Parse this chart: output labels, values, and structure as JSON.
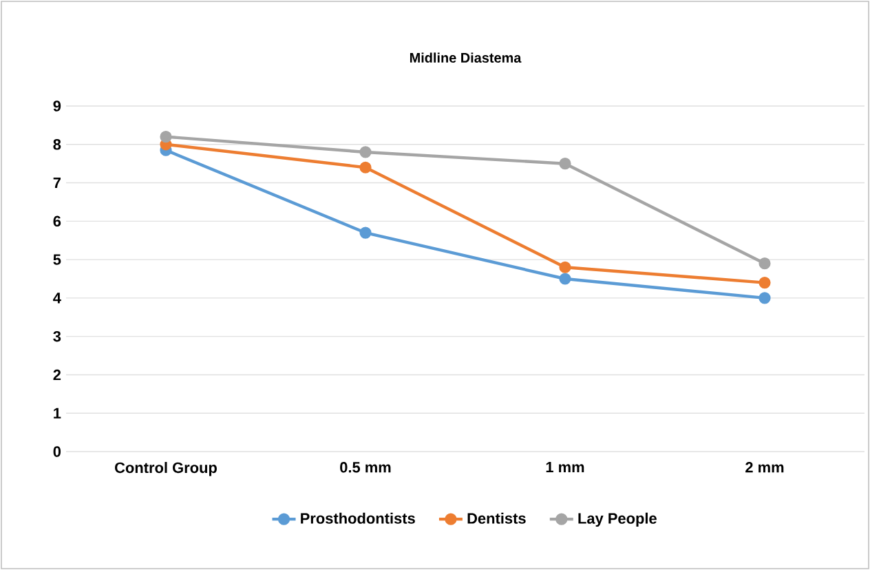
{
  "chart_data": {
    "type": "line",
    "title": "Midline Diastema",
    "categories": [
      "Control Group",
      "0.5 mm",
      "1 mm",
      "2 mm"
    ],
    "series": [
      {
        "name": "Prosthodontists",
        "color": "#5b9bd5",
        "values": [
          7.85,
          5.7,
          4.5,
          4.0
        ]
      },
      {
        "name": "Dentists",
        "color": "#ed7d31",
        "values": [
          8.0,
          7.4,
          4.8,
          4.4
        ]
      },
      {
        "name": "Lay People",
        "color": "#a5a5a5",
        "values": [
          8.2,
          7.8,
          7.5,
          4.9
        ]
      }
    ],
    "ylim": [
      0,
      9
    ],
    "yticks": [
      0,
      1,
      2,
      3,
      4,
      5,
      6,
      7,
      8,
      9
    ],
    "grid": "y",
    "legend": "bottom",
    "marker": "circle",
    "line_style": "solid"
  }
}
